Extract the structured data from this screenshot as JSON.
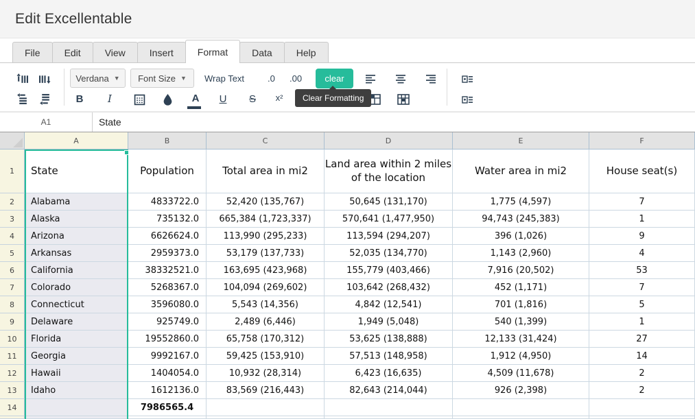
{
  "title": "Edit Excellentable",
  "tabs": [
    {
      "label": "File",
      "active": false
    },
    {
      "label": "Edit",
      "active": false
    },
    {
      "label": "View",
      "active": false
    },
    {
      "label": "Insert",
      "active": false
    },
    {
      "label": "Format",
      "active": true
    },
    {
      "label": "Data",
      "active": false
    },
    {
      "label": "Help",
      "active": false
    }
  ],
  "toolbar": {
    "font_dropdown": "Verdana",
    "size_dropdown": "Font Size",
    "wrap_text": "Wrap Text",
    "decimal_decrease": ".0",
    "decimal_increase": ".00",
    "clear_button": "clear",
    "clear_tooltip": "Clear Formatting",
    "bold": "B",
    "italic": "I",
    "text_color": "A",
    "underline": "U",
    "strikethrough": "S",
    "superscript": "x²"
  },
  "formula_bar": {
    "cell_reference": "A1",
    "value": "State"
  },
  "grid": {
    "column_headers": [
      "A",
      "B",
      "C",
      "D",
      "E",
      "F"
    ],
    "selected_column": "A",
    "selected_cell": "A1",
    "header_row": {
      "row_number": "1",
      "cells": [
        "State",
        "Population",
        "Total area in mi2",
        "Land area within 2 miles of the location",
        "Water area in mi2",
        "House seat(s)"
      ]
    },
    "data_rows": [
      {
        "row_number": "2",
        "state": "Alabama",
        "population": "4833722.0",
        "total_area": "52,420 (135,767)",
        "land_area": "50,645 (131,170)",
        "water_area": "1,775 (4,597)",
        "house_seats": "7"
      },
      {
        "row_number": "3",
        "state": "Alaska",
        "population": "735132.0",
        "total_area": "665,384 (1,723,337)",
        "land_area": "570,641 (1,477,950)",
        "water_area": "94,743 (245,383)",
        "house_seats": "1"
      },
      {
        "row_number": "4",
        "state": "Arizona",
        "population": "6626624.0",
        "total_area": "113,990 (295,233)",
        "land_area": "113,594 (294,207)",
        "water_area": "396 (1,026)",
        "house_seats": "9"
      },
      {
        "row_number": "5",
        "state": "Arkansas",
        "population": "2959373.0",
        "total_area": "53,179 (137,733)",
        "land_area": "52,035 (134,770)",
        "water_area": "1,143 (2,960)",
        "house_seats": "4"
      },
      {
        "row_number": "6",
        "state": "California",
        "population": "38332521.0",
        "total_area": "163,695 (423,968)",
        "land_area": "155,779 (403,466)",
        "water_area": "7,916 (20,502)",
        "house_seats": "53"
      },
      {
        "row_number": "7",
        "state": "Colorado",
        "population": "5268367.0",
        "total_area": "104,094 (269,602)",
        "land_area": "103,642 (268,432)",
        "water_area": "452 (1,171)",
        "house_seats": "7"
      },
      {
        "row_number": "8",
        "state": "Connecticut",
        "population": "3596080.0",
        "total_area": "5,543 (14,356)",
        "land_area": "4,842 (12,541)",
        "water_area": "701 (1,816)",
        "house_seats": "5"
      },
      {
        "row_number": "9",
        "state": "Delaware",
        "population": "925749.0",
        "total_area": "2,489 (6,446)",
        "land_area": "1,949 (5,048)",
        "water_area": "540 (1,399)",
        "house_seats": "1"
      },
      {
        "row_number": "10",
        "state": "Florida",
        "population": "19552860.0",
        "total_area": "65,758 (170,312)",
        "land_area": "53,625 (138,888)",
        "water_area": "12,133 (31,424)",
        "house_seats": "27"
      },
      {
        "row_number": "11",
        "state": "Georgia",
        "population": "9992167.0",
        "total_area": "59,425 (153,910)",
        "land_area": "57,513 (148,958)",
        "water_area": "1,912 (4,950)",
        "house_seats": "14"
      },
      {
        "row_number": "12",
        "state": "Hawaii",
        "population": "1404054.0",
        "total_area": "10,932 (28,314)",
        "land_area": "6,423 (16,635)",
        "water_area": "4,509 (11,678)",
        "house_seats": "2"
      },
      {
        "row_number": "13",
        "state": "Idaho",
        "population": "1612136.0",
        "total_area": "83,569 (216,443)",
        "land_area": "82,643 (214,044)",
        "water_area": "926 (2,398)",
        "house_seats": "2"
      }
    ],
    "footer_row": {
      "row_number": "14",
      "population": "7986565.4"
    }
  },
  "colors": {
    "accent_teal": "#26bc9b",
    "selection_fill": "#eaeaf0",
    "header_highlight": "#f7f5e1",
    "icon_color": "#2e4154",
    "grid_line": "#ccd8e2",
    "tooltip_bg": "#3e3e3e"
  }
}
